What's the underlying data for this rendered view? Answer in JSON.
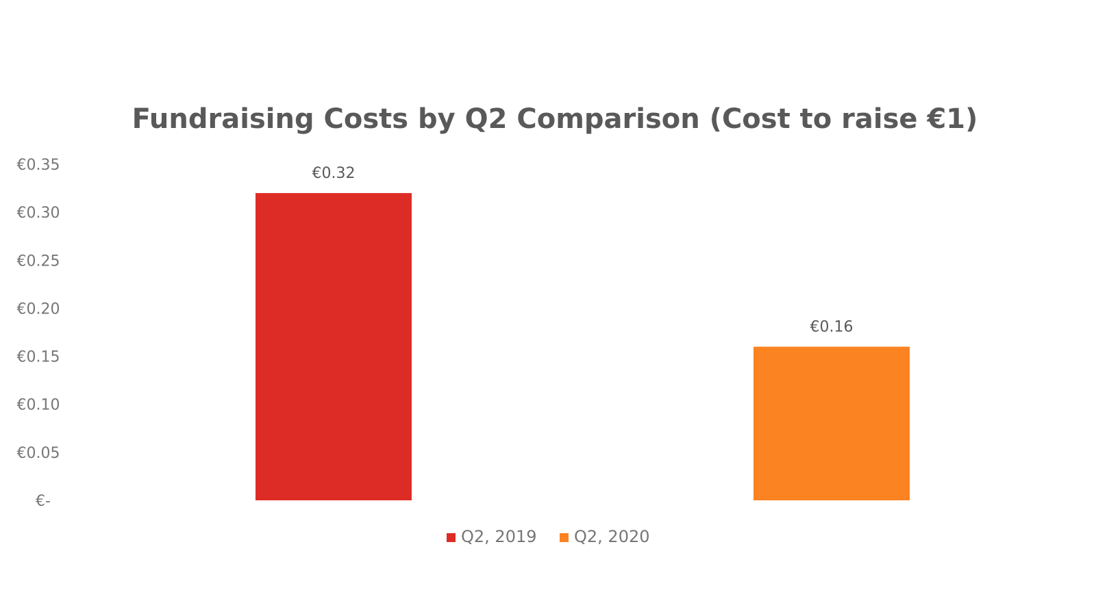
{
  "chart_data": {
    "type": "bar",
    "title": "Fundraising Costs by Q2 Comparison (Cost to raise €1)",
    "xlabel": "",
    "ylabel": "",
    "ylim": [
      0,
      0.35
    ],
    "grid": false,
    "legend_position": "bottom",
    "yticks": [
      {
        "value": 0,
        "label": "€-"
      },
      {
        "value": 0.05,
        "label": "€0.05"
      },
      {
        "value": 0.1,
        "label": "€0.10"
      },
      {
        "value": 0.15,
        "label": "€0.15"
      },
      {
        "value": 0.2,
        "label": "€0.20"
      },
      {
        "value": 0.25,
        "label": "€0.25"
      },
      {
        "value": 0.3,
        "label": "€0.30"
      },
      {
        "value": 0.35,
        "label": "€0.35"
      }
    ],
    "series": [
      {
        "name": "Q2, 2019",
        "value": 0.32,
        "label": "€0.32",
        "color": "#DD2C25"
      },
      {
        "name": "Q2, 2020",
        "value": 0.16,
        "label": "€0.16",
        "color": "#FB8321"
      }
    ]
  }
}
